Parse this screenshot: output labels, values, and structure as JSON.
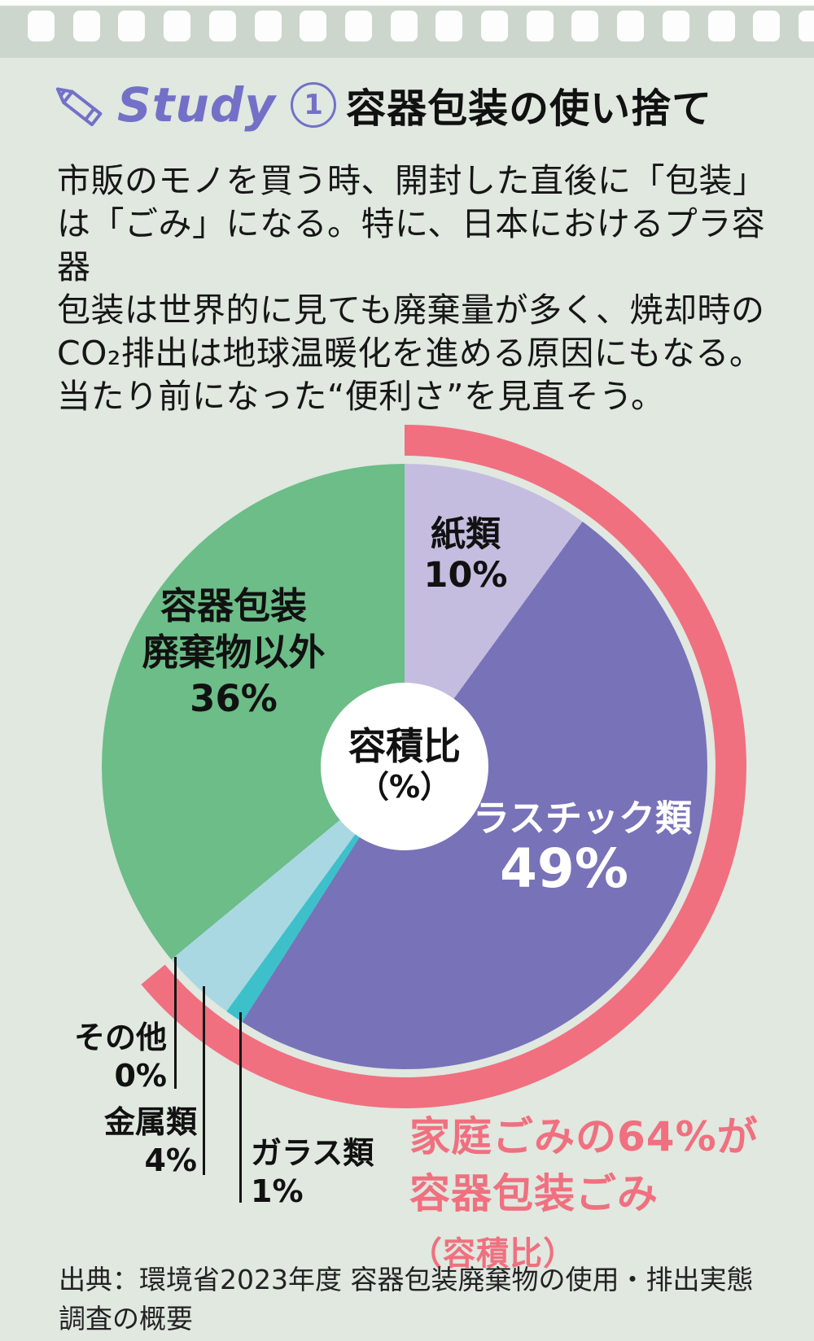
{
  "page": {
    "background_color": "#e0e8e0",
    "band_color": "#cdd6cd",
    "accent_color": "#7470c8",
    "highlight_color": "#f0707f"
  },
  "header": {
    "study_label": "Study",
    "study_number": "1",
    "title": "容器包装の使い捨て"
  },
  "intro": {
    "lines": [
      "市販のモノを買う時、開封した直後に「包装」",
      "は「ごみ」になる。特に、日本におけるプラ容器",
      "包装は世界的に見ても廃棄量が多く、焼却時の",
      "CO₂排出は地球温暖化を進める原因にもなる。",
      "当たり前になった“便利さ”を見直そう。"
    ]
  },
  "chart_data": {
    "type": "pie",
    "title": "容積比（%）",
    "unit": "%",
    "start_angle_deg": 0,
    "direction": "clockwise",
    "slices": [
      {
        "label": "紙類",
        "value": 10,
        "color": "#c4bde0"
      },
      {
        "label": "プラスチック類",
        "value": 49,
        "color": "#7872b8"
      },
      {
        "label": "ガラス類",
        "value": 1,
        "color": "#3ec0cb"
      },
      {
        "label": "金属類",
        "value": 4,
        "color": "#a9d8e2"
      },
      {
        "label": "その他",
        "value": 0,
        "color": "#a9d8e2"
      },
      {
        "label": "容器包装廃棄物以外",
        "value": 36,
        "color": "#6cbd88"
      }
    ],
    "highlight_arc": {
      "value": 64,
      "color": "#f0707f",
      "meaning": "家庭ごみの64%が容器包装ごみ（容積比）"
    }
  },
  "pie_labels": {
    "paper": {
      "name": "紙類",
      "pct": "10%"
    },
    "plastic": {
      "name": "プラスチック類",
      "pct": "49%"
    },
    "glass": {
      "name": "ガラス類",
      "pct": "1%"
    },
    "metal": {
      "name": "金属類",
      "pct": "4%"
    },
    "other": {
      "name": "その他",
      "pct": "0%"
    },
    "nonpackaging": {
      "line1": "容器包装",
      "line2": "廃棄物以外",
      "pct": "36%"
    },
    "center_line1": "容積比",
    "center_line2": "（%）"
  },
  "callout": {
    "line1": "家庭ごみの64%が",
    "line2": "容器包装ごみ",
    "line2_suffix": "（容積比）"
  },
  "source": "出典：環境省2023年度 容器包装廃棄物の使用・排出実態調査の概要"
}
